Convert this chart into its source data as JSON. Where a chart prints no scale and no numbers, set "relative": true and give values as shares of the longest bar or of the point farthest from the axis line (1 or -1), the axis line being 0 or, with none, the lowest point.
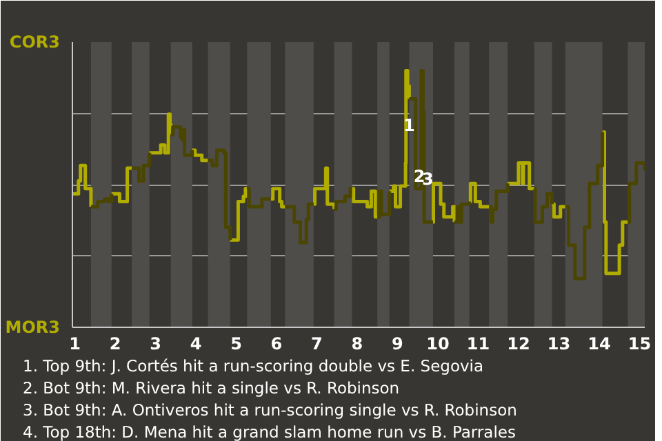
{
  "chart_data": {
    "type": "step",
    "relative": true,
    "xlim": [
      0.94,
      15.13
    ],
    "xticks": [
      1,
      2,
      3,
      4,
      5,
      6,
      7,
      8,
      9,
      10,
      11,
      12,
      13,
      14,
      15
    ],
    "grid": "y",
    "series": [
      {
        "color": "#b0ac00",
        "x": [
          0.94,
          1.09,
          1.14,
          1.26,
          1.4,
          null,
          1.91,
          2.11,
          2.3,
          2.41,
          null,
          2.85,
          3.13,
          3.23,
          3.32,
          3.36,
          3.38,
          null,
          3.91,
          3.98,
          4.15,
          4.3,
          null,
          4.85,
          5.05,
          5.18,
          5.23,
          5.27,
          null,
          5.86,
          5.91,
          6.08,
          6.13,
          6.21,
          null,
          6.92,
          6.95,
          7.22,
          7.26,
          7.43,
          null,
          7.87,
          7.91,
          8.25,
          8.35,
          8.45,
          8.5,
          null,
          8.8,
          8.9,
          8.95,
          9.07,
          9.2,
          9.21,
          9.25,
          9.29,
          null,
          9.88,
          9.89,
          10.07,
          10.15,
          10.37,
          10.41,
          null,
          10.78,
          10.81,
          10.93,
          11.05,
          11.27,
          null,
          11.73,
          12,
          12.1,
          12.12,
          12.27,
          12.39,
          null,
          12.83,
          12.88,
          13.04,
          13.16,
          null,
          14.08,
          14.13,
          14.17,
          14.5,
          14.58,
          14.71
        ],
        "values": [
          0.52,
          0.57,
          0.63,
          0.54,
          0.47,
          null,
          0.52,
          0.49,
          0.62,
          0.62,
          null,
          0.68,
          0.71,
          0.68,
          0.83,
          0.79,
          0.75,
          null,
          0.69,
          0.67,
          0.65,
          0.65,
          null,
          0.34,
          0.49,
          0.51,
          0.54,
          0.54,
          null,
          0.5,
          0.54,
          0.49,
          0.47,
          0.47,
          null,
          0.48,
          0.54,
          0.62,
          0.48,
          0.46,
          null,
          0.54,
          0.49,
          0.47,
          0.53,
          0.43,
          0.43,
          null,
          0.53,
          0.55,
          0.47,
          0.55,
          0.64,
          1,
          0.94,
          0.89,
          null,
          0.41,
          0.56,
          0.48,
          0.43,
          0.47,
          0.41,
          null,
          0.49,
          0.56,
          0.49,
          0.47,
          0.47,
          null,
          0.56,
          0.64,
          0.56,
          0.64,
          0.54,
          0.54,
          null,
          0.48,
          0.43,
          0.47,
          0.47,
          null,
          0.76,
          0.41,
          0.21,
          0.32,
          0.41,
          0.41
        ]
      },
      {
        "color": "#4a4500",
        "x": [
          1.4,
          1.57,
          1.74,
          1.83,
          1.91,
          null,
          2.41,
          2.59,
          2.7,
          2.85,
          null,
          3.38,
          3.43,
          3.62,
          3.66,
          3.7,
          3.72,
          3.91,
          null,
          4.3,
          4.41,
          4.52,
          4.7,
          4.74,
          4.85,
          null,
          5.27,
          5.32,
          5.64,
          5.86,
          null,
          6.21,
          6.44,
          6.59,
          6.74,
          6.79,
          6.92,
          null,
          7.43,
          7.48,
          7.7,
          7.83,
          7.87,
          null,
          8.5,
          8.55,
          8.6,
          8.8,
          null,
          9.29,
          9.45,
          9.59,
          9.63,
          9.66,
          9.88,
          null,
          10.41,
          10.48,
          10.52,
          10.59,
          10.78,
          null,
          11.27,
          11.32,
          11.36,
          11.45,
          11.73,
          null,
          12.39,
          12.41,
          12.59,
          12.71,
          12.83,
          null,
          13.16,
          13.24,
          13.4,
          13.64,
          13.76,
          13.96,
          14.08,
          null,
          14.71,
          14.75,
          14.92,
          15.13
        ],
        "values": [
          0.47,
          0.49,
          0.5,
          0.49,
          0.52,
          null,
          0.62,
          0.57,
          0.63,
          0.68,
          null,
          0.75,
          0.78,
          0.74,
          0.73,
          0.77,
          0.67,
          0.69,
          null,
          0.65,
          0.63,
          0.69,
          0.68,
          0.39,
          0.34,
          null,
          0.54,
          0.47,
          0.5,
          0.5,
          null,
          0.47,
          0.41,
          0.33,
          0.42,
          0.48,
          0.48,
          null,
          0.46,
          0.49,
          0.51,
          0.54,
          0.54,
          null,
          0.43,
          0.53,
          0.44,
          0.53,
          null,
          0.89,
          0.54,
          1,
          0.84,
          0.41,
          0.41,
          null,
          0.41,
          0.47,
          0.41,
          0.48,
          0.49,
          null,
          0.47,
          0.41,
          0.46,
          0.53,
          0.56,
          null,
          0.54,
          0.41,
          0.47,
          0.52,
          0.48,
          null,
          0.47,
          0.32,
          0.19,
          0.39,
          0.56,
          0.63,
          0.76,
          null,
          0.41,
          0.56,
          0.64,
          0.61
        ]
      }
    ],
    "bands": [
      {
        "axis": "x",
        "from": 1.4,
        "to": 1.91,
        "color": "#4f4d4a"
      },
      {
        "axis": "x",
        "from": 2.41,
        "to": 2.85,
        "color": "#4f4d4a"
      },
      {
        "axis": "x",
        "from": 3.38,
        "to": 3.91,
        "color": "#4f4d4a"
      },
      {
        "axis": "x",
        "from": 4.3,
        "to": 4.85,
        "color": "#4f4d4a"
      },
      {
        "axis": "x",
        "from": 5.27,
        "to": 5.86,
        "color": "#4f4d4a"
      },
      {
        "axis": "x",
        "from": 6.21,
        "to": 6.92,
        "color": "#4f4d4a"
      },
      {
        "axis": "x",
        "from": 7.43,
        "to": 7.87,
        "color": "#4f4d4a"
      },
      {
        "axis": "x",
        "from": 8.5,
        "to": 8.8,
        "color": "#4f4d4a"
      },
      {
        "axis": "x",
        "from": 9.29,
        "to": 9.88,
        "color": "#4f4d4a"
      },
      {
        "axis": "x",
        "from": 10.41,
        "to": 10.78,
        "color": "#4f4d4a"
      },
      {
        "axis": "x",
        "from": 11.27,
        "to": 11.73,
        "color": "#4f4d4a"
      },
      {
        "axis": "x",
        "from": 12.39,
        "to": 12.83,
        "color": "#4f4d4a"
      },
      {
        "axis": "x",
        "from": 13.16,
        "to": 14.08,
        "color": "#4f4d4a"
      },
      {
        "axis": "x",
        "from": 14.71,
        "to": 15.13,
        "color": "#4f4d4a"
      }
    ],
    "annotations": [
      "COR3",
      "MOR3",
      {
        "text": "1",
        "x": 9.29,
        "y": 0.79
      },
      {
        "text": "2",
        "x": 9.54,
        "y": 0.59
      },
      {
        "text": "3",
        "x": 9.75,
        "y": 0.58
      },
      "1. Top 9th: J. Cortés hit a run-scoring double vs E. Segovia",
      "2. Bot 9th: M. Rivera hit a single vs R. Robinson",
      "3. Bot 9th: A. Ontiveros hit a run-scoring single vs R. Robinson",
      "4. Top 18th: D. Mena hit a grand slam home run vs B. Parrales"
    ]
  }
}
